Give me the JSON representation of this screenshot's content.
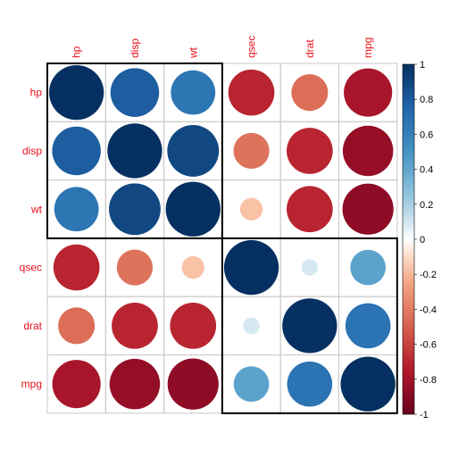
{
  "chart_data": {
    "type": "heatmap",
    "variables": [
      "hp",
      "disp",
      "wt",
      "qsec",
      "drat",
      "mpg"
    ],
    "matrix": [
      [
        1.0,
        0.79,
        0.66,
        -0.71,
        -0.45,
        -0.78
      ],
      [
        0.79,
        1.0,
        0.89,
        -0.43,
        -0.71,
        -0.85
      ],
      [
        0.66,
        0.89,
        1.0,
        -0.17,
        -0.71,
        -0.87
      ],
      [
        -0.71,
        -0.43,
        -0.17,
        1.0,
        0.09,
        0.42
      ],
      [
        -0.45,
        -0.71,
        -0.71,
        0.09,
        1.0,
        0.68
      ],
      [
        -0.78,
        -0.85,
        -0.87,
        0.42,
        0.68,
        1.0
      ]
    ],
    "clusters": [
      [
        0,
        2
      ],
      [
        3,
        5
      ]
    ],
    "colorbar": {
      "ticks": [
        "1",
        "0.8",
        "0.6",
        "0.4",
        "0.2",
        "0",
        "-0.2",
        "-0.4",
        "-0.6",
        "-0.8",
        "-1"
      ],
      "range": [
        -1,
        1
      ]
    }
  }
}
